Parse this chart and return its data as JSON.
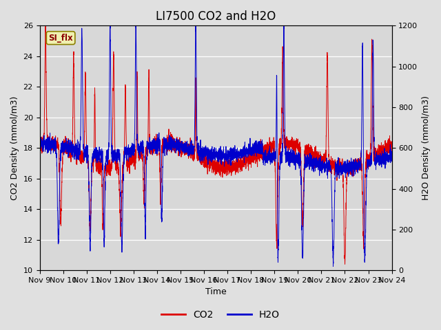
{
  "title": "LI7500 CO2 and H2O",
  "xlabel": "Time",
  "ylabel_left": "CO2 Density (mmol/m3)",
  "ylabel_right": "H2O Density (mmol/m3)",
  "co2_ylim": [
    10,
    26
  ],
  "h2o_ylim": [
    0,
    1200
  ],
  "xtick_labels": [
    "Nov 9",
    "Nov 10",
    "Nov 11",
    "Nov 12",
    "Nov 13",
    "Nov 14",
    "Nov 15",
    "Nov 16",
    "Nov 17",
    "Nov 18",
    "Nov 19",
    "Nov 20",
    "Nov 21",
    "Nov 22",
    "Nov 23",
    "Nov 24"
  ],
  "annotation_text": "SI_flx",
  "bg_color": "#e0e0e0",
  "plot_bg_color": "#d8d8d8",
  "co2_color": "#dd0000",
  "h2o_color": "#0000cc",
  "legend_co2": "CO2",
  "legend_h2o": "H2O",
  "title_fontsize": 12,
  "label_fontsize": 9,
  "tick_fontsize": 8,
  "legend_fontsize": 10,
  "seed": 7,
  "n_days": 15,
  "points_per_day": 288
}
